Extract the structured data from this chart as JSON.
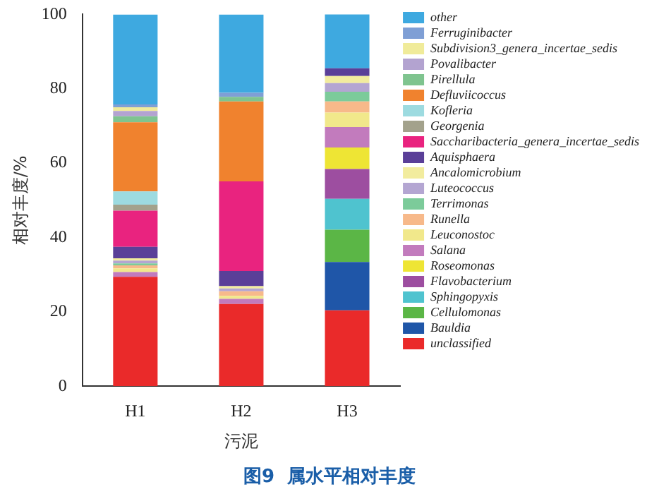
{
  "chart_data": {
    "type": "bar",
    "title": "图9  属水平相对丰度",
    "xlabel": "污泥",
    "ylabel": "相对丰度/%",
    "categories": [
      "H1",
      "H2",
      "H3"
    ],
    "stacked": true,
    "ylim": [
      0,
      100
    ],
    "yticks": [
      0,
      20,
      40,
      60,
      80,
      100
    ],
    "grid": false,
    "legend": "right",
    "series": [
      {
        "name": "unclassified",
        "color": "#ea2a2a",
        "values": [
          29.4,
          22.1,
          20.4
        ]
      },
      {
        "name": "Bauldia",
        "color": "#1f56a8",
        "values": [
          null,
          null,
          13.0
        ]
      },
      {
        "name": "Cellulomonas",
        "color": "#5bb646",
        "values": [
          null,
          null,
          8.7
        ]
      },
      {
        "name": "Sphingopyxis",
        "color": "#4fc3cf",
        "values": [
          null,
          null,
          8.3
        ]
      },
      {
        "name": "Flavobacterium",
        "color": "#9d4ea0",
        "values": [
          null,
          null,
          8.0
        ]
      },
      {
        "name": "Roseomonas",
        "color": "#eee534",
        "values": [
          null,
          null,
          5.8
        ]
      },
      {
        "name": "Salana",
        "color": "#c27bbd",
        "values": [
          1.3,
          1.4,
          5.5
        ]
      },
      {
        "name": "Leuconostoc",
        "color": "#f1e88b",
        "values": [
          1.0,
          0.8,
          3.9
        ]
      },
      {
        "name": "Runella",
        "color": "#f7b98a",
        "values": [
          0.8,
          1.2,
          3.0
        ]
      },
      {
        "name": "Terrimonas",
        "color": "#7ccb9a",
        "values": [
          0.5,
          null,
          2.6
        ]
      },
      {
        "name": "Luteococcus",
        "color": "#b4a6d2",
        "values": [
          0.8,
          0.8,
          2.3
        ]
      },
      {
        "name": "Ancalomicrobium",
        "color": "#f2ec9e",
        "values": [
          0.6,
          0.6,
          1.9
        ]
      },
      {
        "name": "Aquisphaera",
        "color": "#5a3f98",
        "values": [
          3.1,
          4.1,
          2.1
        ]
      },
      {
        "name": "Saccharibacteria_genera_incertae_sedis",
        "color": "#e9237f",
        "values": [
          9.7,
          24.1,
          null
        ]
      },
      {
        "name": "Georgenia",
        "color": "#a3a28c",
        "values": [
          1.6,
          null,
          null
        ]
      },
      {
        "name": "Kofleria",
        "color": "#9ddbe0",
        "values": [
          3.6,
          null,
          null
        ]
      },
      {
        "name": "Defluviicoccus",
        "color": "#f0822e",
        "values": [
          18.6,
          21.5,
          null
        ]
      },
      {
        "name": "Pirellula",
        "color": "#7fc48f",
        "values": [
          1.6,
          1.2,
          null
        ]
      },
      {
        "name": "Povalibacter",
        "color": "#b3a3d0",
        "values": [
          1.4,
          null,
          null
        ]
      },
      {
        "name": "Subdivision3_genera_incertae_sedis",
        "color": "#f0eb9a",
        "values": [
          1.0,
          null,
          null
        ]
      },
      {
        "name": "Ferruginibacter",
        "color": "#7f9fd5",
        "values": [
          0.8,
          1.1,
          null
        ]
      },
      {
        "name": "other",
        "color": "#3ea9e0",
        "values": [
          24.2,
          21.1,
          14.6
        ]
      }
    ]
  }
}
